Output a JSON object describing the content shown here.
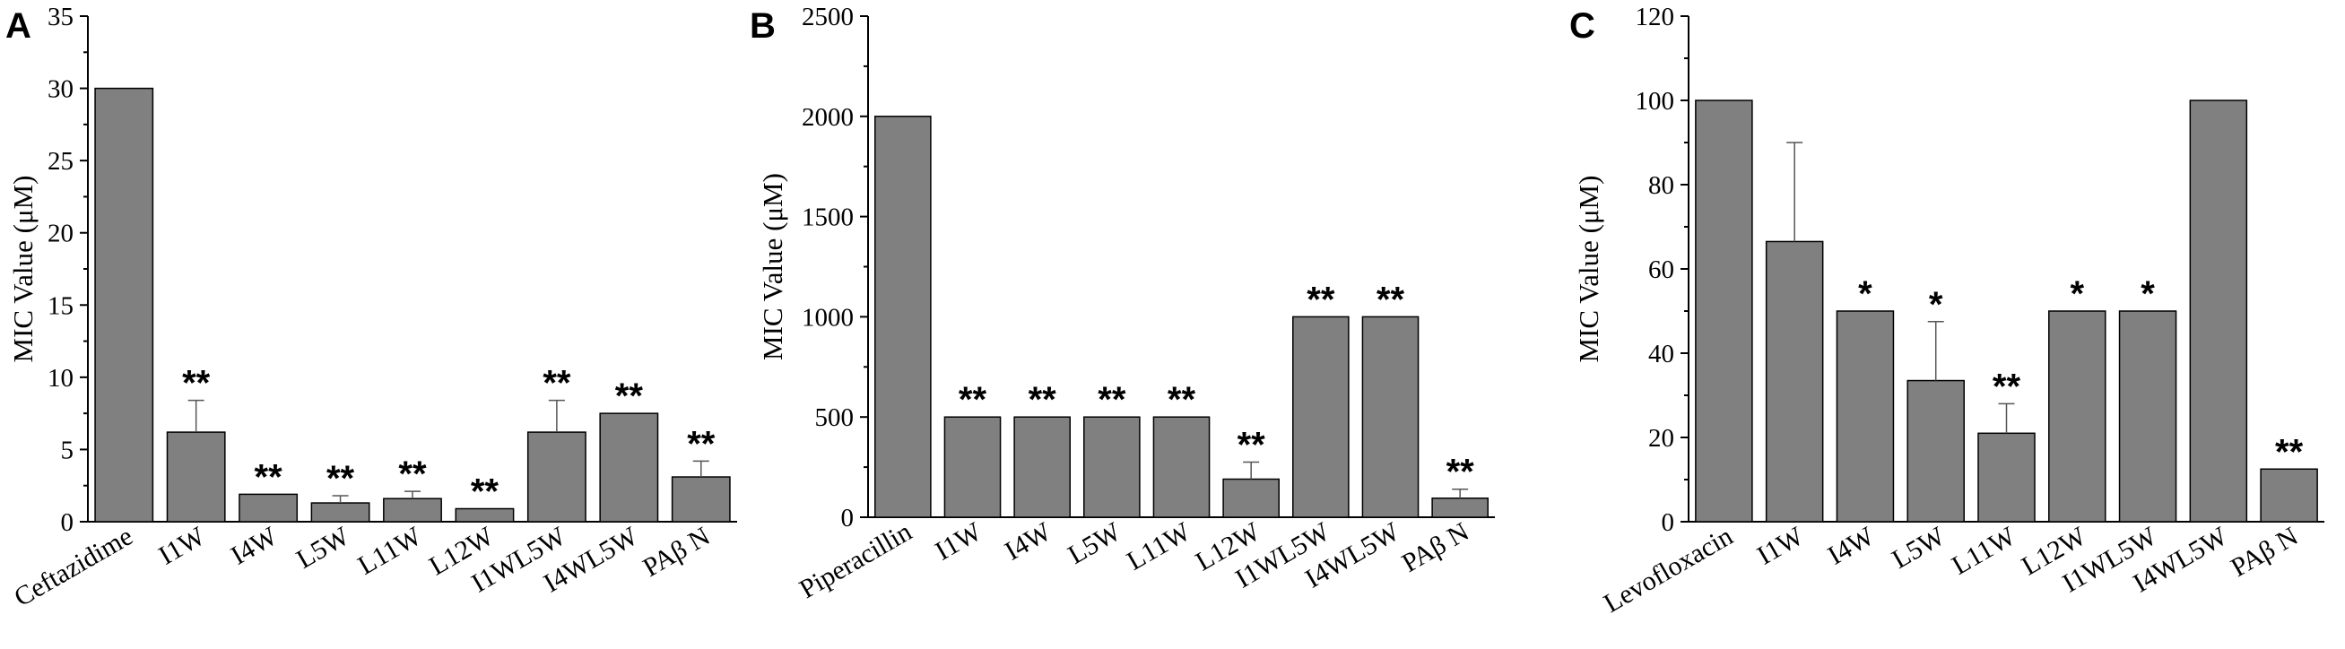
{
  "colors": {
    "bar": "#808080",
    "bar_stroke": "#000000",
    "axis": "#000000",
    "error_bar": "#555555"
  },
  "chart_data": [
    {
      "panel": "A",
      "type": "bar",
      "ylabel": "MIC Value (μM)",
      "ylim": [
        0,
        35
      ],
      "yticks": [
        0,
        5,
        10,
        15,
        20,
        25,
        30,
        35
      ],
      "grid": false,
      "categories": [
        "Ceftazidime",
        "I1W",
        "I4W",
        "L5W",
        "L11W",
        "L12W",
        "I1WL5W",
        "I4WL5W",
        "PAβ N"
      ],
      "values": [
        30,
        6.2,
        1.9,
        1.3,
        1.6,
        0.9,
        6.2,
        7.5,
        3.1
      ],
      "errors": [
        0,
        2.2,
        0,
        0.5,
        0.5,
        0,
        2.2,
        0,
        1.1
      ],
      "significance": [
        "",
        "**",
        "**",
        "**",
        "**",
        "**",
        "**",
        "**",
        "**"
      ]
    },
    {
      "panel": "B",
      "type": "bar",
      "ylabel": "MIC Value  (μM)",
      "ylim": [
        0,
        2500
      ],
      "yticks": [
        0,
        500,
        1000,
        1500,
        2000,
        2500
      ],
      "grid": false,
      "categories": [
        "Piperacillin",
        "I1W",
        "I4W",
        "L5W",
        "L11W",
        "L12W",
        "I1WL5W",
        "I4WL5W",
        "PAβ N"
      ],
      "values": [
        2000,
        500,
        500,
        500,
        500,
        190,
        1000,
        1000,
        95
      ],
      "errors": [
        0,
        0,
        0,
        0,
        0,
        85,
        0,
        0,
        45
      ],
      "significance": [
        "",
        "**",
        "**",
        "**",
        "**",
        "**",
        "**",
        "**",
        "**"
      ]
    },
    {
      "panel": "C",
      "type": "bar",
      "ylabel": "MIC Value  (μM)",
      "ylim": [
        0,
        120
      ],
      "yticks": [
        0,
        20,
        40,
        60,
        80,
        100,
        120
      ],
      "grid": false,
      "categories": [
        "Levofloxacin",
        "I1W",
        "I4W",
        "L5W",
        "L11W",
        "L12W",
        "I1WL5W",
        "I4WL5W",
        "PAβ N"
      ],
      "values": [
        100,
        66.5,
        50,
        33.5,
        21,
        50,
        50,
        100,
        12.5
      ],
      "errors": [
        0,
        23.5,
        0,
        14,
        7,
        0,
        0,
        0,
        0
      ],
      "significance": [
        "",
        "",
        "*",
        "*",
        "**",
        "*",
        "*",
        "",
        "**"
      ]
    }
  ]
}
